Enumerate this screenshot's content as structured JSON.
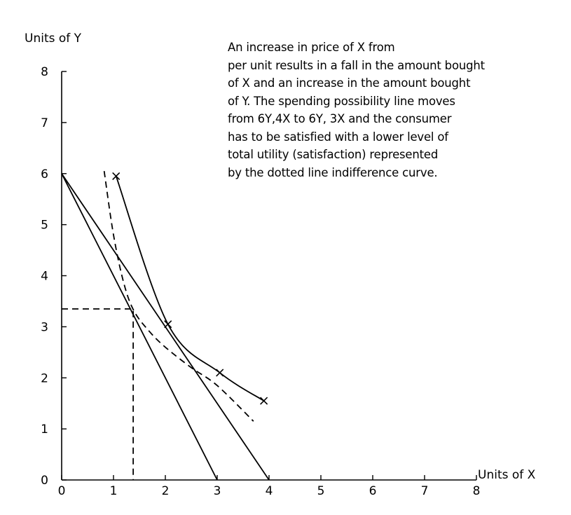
{
  "chart_data": {
    "type": "line",
    "xlabel": "Units of X",
    "ylabel": "Units of Y",
    "xlim": [
      0,
      8
    ],
    "ylim": [
      0,
      8
    ],
    "x_ticks": [
      "0",
      "1",
      "2",
      "3",
      "4",
      "5",
      "6",
      "7",
      "8"
    ],
    "y_ticks": [
      "0",
      "1",
      "2",
      "3",
      "4",
      "5",
      "6",
      "7",
      "8"
    ],
    "grid": false,
    "series": [
      {
        "style": "solid",
        "kind": "budget-line",
        "x": [
          0,
          4
        ],
        "y": [
          6,
          0
        ]
      },
      {
        "style": "solid",
        "kind": "budget-line",
        "x": [
          0,
          3
        ],
        "y": [
          6,
          0
        ]
      },
      {
        "style": "solid",
        "kind": "indifference-curve",
        "marker": "x",
        "x": [
          1.05,
          2.05,
          3.05,
          3.9
        ],
        "y": [
          5.95,
          3.05,
          2.1,
          1.55
        ]
      },
      {
        "style": "dashed",
        "kind": "indifference-curve",
        "x": [
          0.82,
          1.0,
          1.2,
          1.4,
          1.7,
          2.0,
          2.5,
          3.0,
          3.7
        ],
        "y": [
          6.05,
          4.8,
          3.85,
          3.3,
          2.9,
          2.6,
          2.2,
          1.85,
          1.15
        ]
      },
      {
        "style": "dashed",
        "kind": "guide-line",
        "x": [
          0,
          1.38,
          1.38
        ],
        "y": [
          3.35,
          3.35,
          0
        ]
      }
    ],
    "annotation": [
      "An increase in price of X from",
      "per unit results in a fall in the amount bought",
      "of X and an increase in the amount bought",
      "of Y. The spending possibility line moves",
      "from 6Y,4X to 6Y, 3X and the consumer",
      "has to be satisfied with a lower level of",
      "total utility (satisfaction) represented",
      "by the dotted line indifference curve."
    ]
  }
}
